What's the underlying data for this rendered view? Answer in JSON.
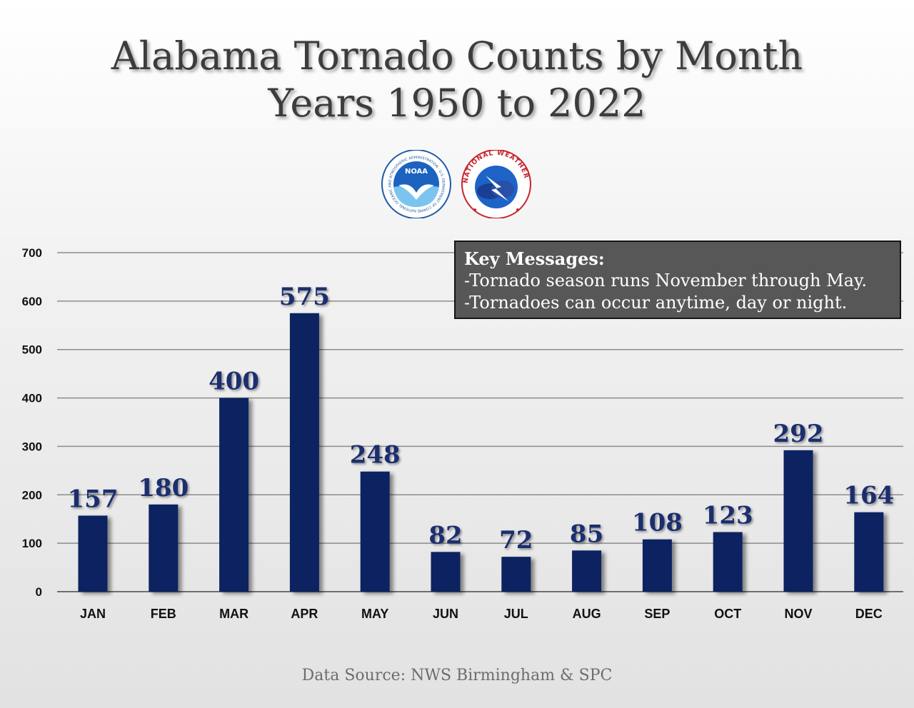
{
  "title_line1": "Alabama Tornado Counts by Month",
  "title_line2": "Years 1950 to 2022",
  "logos": {
    "noaa": {
      "icon": "noaa-logo",
      "text": "NOAA",
      "ring_text": "NATIONAL OCEANIC AND ATMOSPHERIC ADMINISTRATION · U.S. DEPARTMENT OF COMMERCE"
    },
    "nws": {
      "icon": "nws-logo",
      "ring_text": "NATIONAL WEATHER SERVICE"
    }
  },
  "key_messages": {
    "title": "Key Messages:",
    "lines": [
      "-Tornado season runs November through May.",
      "-Tornadoes can occur anytime, day or night."
    ]
  },
  "source": "Data Source: NWS Birmingham & SPC",
  "colors": {
    "bar": "#0b2160",
    "label": "#1a2f6e",
    "grid": "#8c8c8c",
    "axis_text": "#111111"
  },
  "chart_data": {
    "type": "bar",
    "categories": [
      "JAN",
      "FEB",
      "MAR",
      "APR",
      "MAY",
      "JUN",
      "JUL",
      "AUG",
      "SEP",
      "OCT",
      "NOV",
      "DEC"
    ],
    "values": [
      157,
      180,
      400,
      575,
      248,
      82,
      72,
      85,
      108,
      123,
      292,
      164
    ],
    "yticks": [
      0,
      100,
      200,
      300,
      400,
      500,
      600,
      700
    ],
    "ylim": [
      0,
      700
    ],
    "grid": true,
    "data_labels": true,
    "title": "Alabama Tornado Counts by Month",
    "subtitle": "Years 1950 to 2022",
    "xlabel": "",
    "ylabel": ""
  }
}
